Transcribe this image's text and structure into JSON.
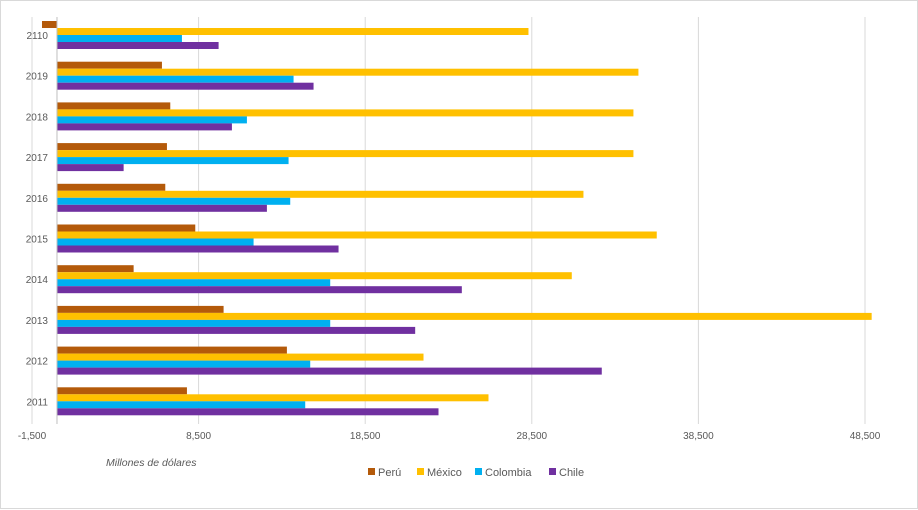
{
  "chart_data": {
    "type": "bar",
    "orientation": "horizontal",
    "categories": [
      "2110",
      "2019",
      "2018",
      "2017",
      "2016",
      "2015",
      "2014",
      "2013",
      "2012",
      "2011"
    ],
    "series": [
      {
        "name": "Perú",
        "color": "#b45a0a",
        "values": [
          -900,
          6300,
          6800,
          6600,
          6500,
          8300,
          4600,
          10000,
          13800,
          7800
        ]
      },
      {
        "name": "México",
        "color": "#ffc000",
        "values": [
          28300,
          34900,
          34600,
          34600,
          31600,
          36000,
          30900,
          48900,
          22000,
          25900
        ]
      },
      {
        "name": "Colombia",
        "color": "#00b0f0",
        "values": [
          7500,
          14200,
          11400,
          13900,
          14000,
          11800,
          16400,
          16400,
          15200,
          14900
        ]
      },
      {
        "name": "Chile",
        "color": "#7030a0",
        "values": [
          9700,
          15400,
          10500,
          4000,
          12600,
          16900,
          24300,
          21500,
          32700,
          22900
        ]
      }
    ],
    "xlabel": "Millones de dólares",
    "xticks": [
      -1500,
      8500,
      18500,
      28500,
      38500,
      48500
    ],
    "xtick_labels": [
      "-1,500",
      "8,500",
      "18,500",
      "28,500",
      "38,500",
      "48,500"
    ],
    "xlim": [
      -1500,
      48500
    ],
    "grid": "vertical",
    "legend_position": "bottom"
  }
}
